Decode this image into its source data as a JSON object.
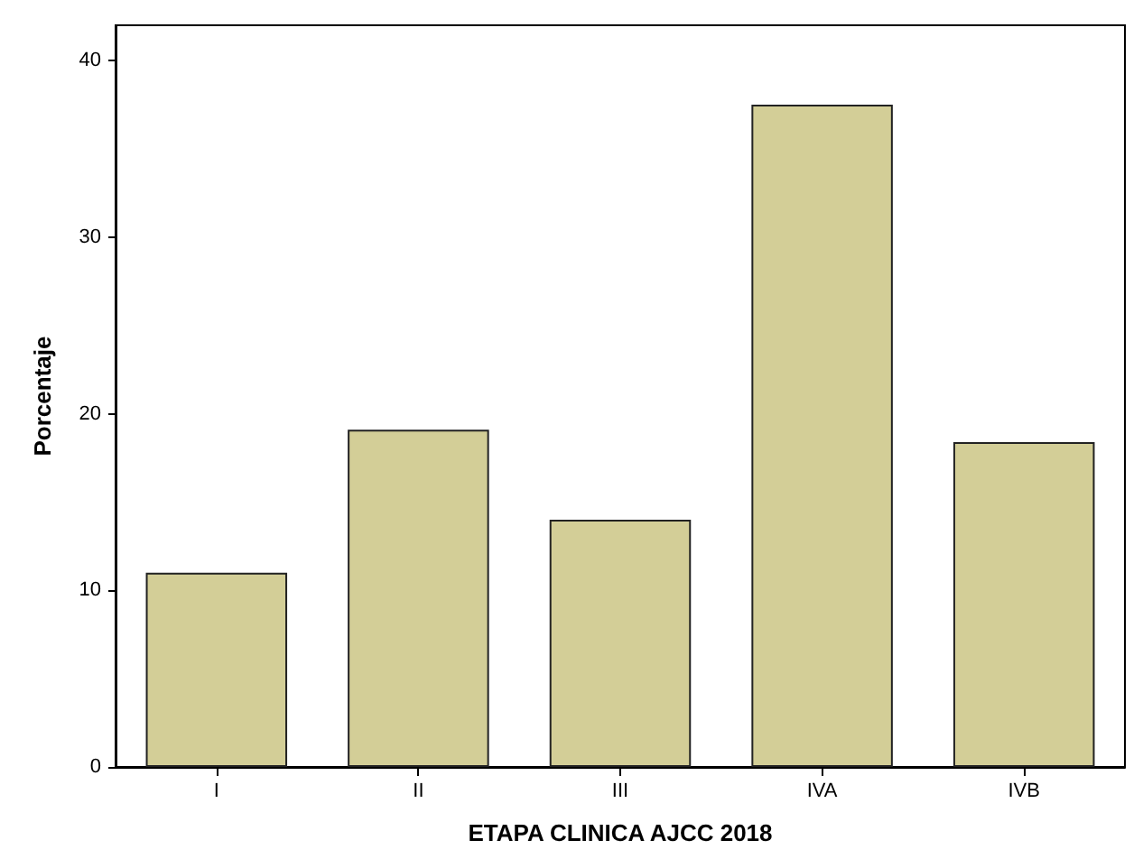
{
  "chart_data": {
    "type": "bar",
    "xlabel": "ETAPA CLINICA AJCC 2018",
    "ylabel": "Porcentaje",
    "categories": [
      "I",
      "II",
      "III",
      "IVA",
      "IVB"
    ],
    "values": [
      11.0,
      19.1,
      14.0,
      37.5,
      18.4
    ],
    "color": "#d3ce97",
    "ylim": [
      0,
      42
    ],
    "yticks": [
      0,
      10,
      20,
      30,
      40
    ],
    "grid": false
  }
}
